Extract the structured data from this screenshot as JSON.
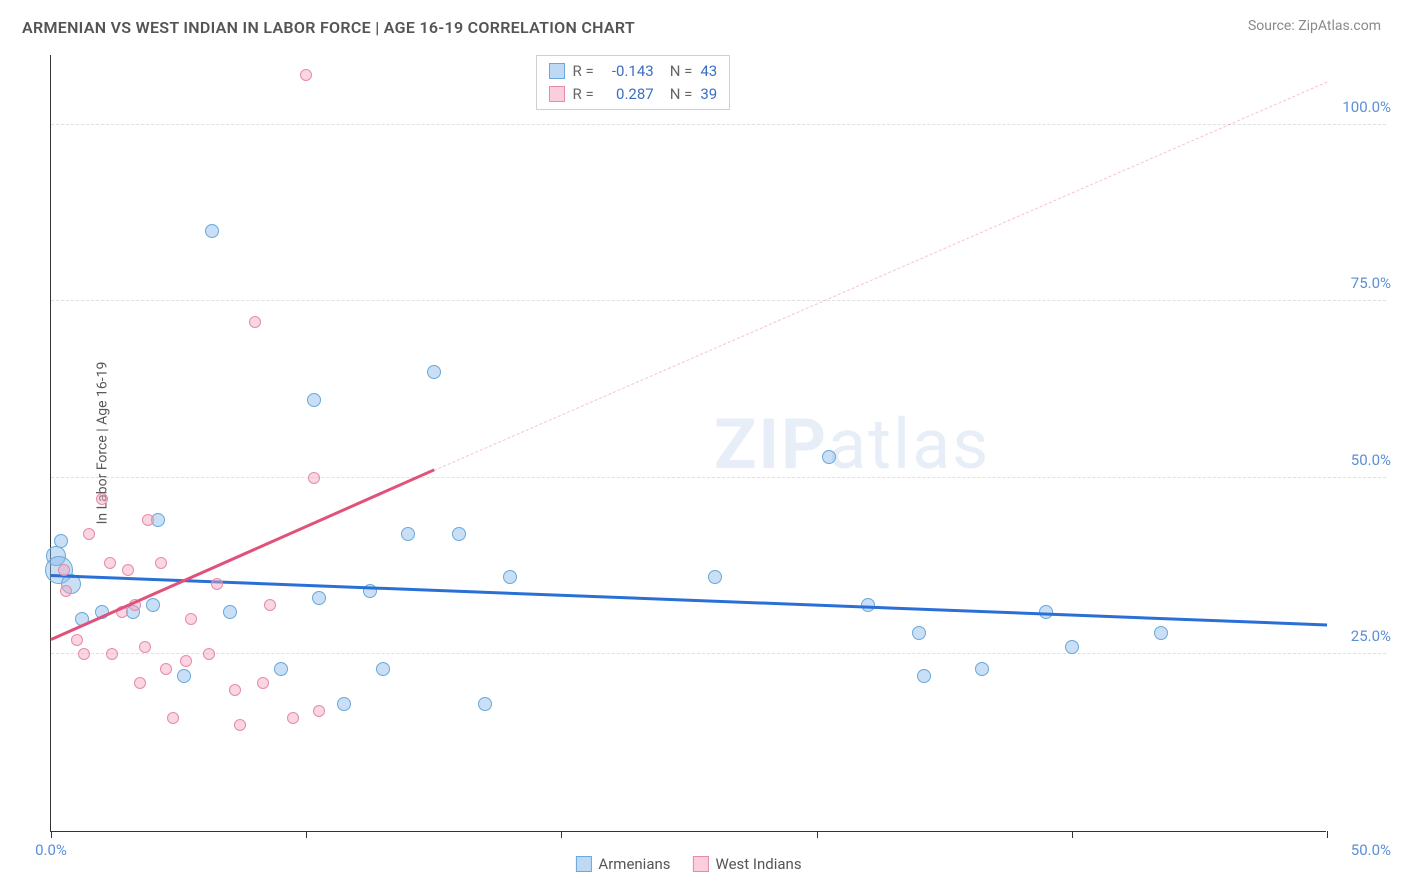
{
  "title": "ARMENIAN VS WEST INDIAN IN LABOR FORCE | AGE 16-19 CORRELATION CHART",
  "source": "Source: ZipAtlas.com",
  "y_axis_title": "In Labor Force | Age 16-19",
  "watermark_bold": "ZIP",
  "watermark_rest": "atlas",
  "chart": {
    "type": "scatter",
    "xlim": [
      0,
      50
    ],
    "ylim": [
      0,
      110
    ],
    "x_ticks": [
      0,
      10,
      20,
      30,
      40,
      50
    ],
    "x_tick_labels": [
      "0.0%",
      "",
      "",
      "",
      "",
      "50.0%"
    ],
    "y_ticks": [
      25,
      50,
      75,
      100
    ],
    "y_tick_labels": [
      "25.0%",
      "50.0%",
      "75.0%",
      "100.0%"
    ],
    "y_tick_color": "#5a8fd6",
    "x_tick_color": "#5a8fd6",
    "grid_color": "#e0e0e0",
    "background": "#ffffff",
    "series": [
      {
        "name": "Armenians",
        "color_fill": "rgba(135,185,235,0.45)",
        "color_stroke": "#6aa8da",
        "swatch_fill": "rgba(135,185,235,0.55)",
        "swatch_stroke": "#6aa8da",
        "trend_color": "#2a6fd6",
        "trend_dash_color": "rgba(42,111,214,0.35)",
        "R": "-0.143",
        "N": "43",
        "trend_start": {
          "x": 0,
          "y": 36
        },
        "trend_end": {
          "x": 50,
          "y": 29
        },
        "points": [
          {
            "x": 0.2,
            "y": 39,
            "r": 10
          },
          {
            "x": 0.3,
            "y": 37,
            "r": 14
          },
          {
            "x": 0.8,
            "y": 35,
            "r": 10
          },
          {
            "x": 0.4,
            "y": 41,
            "r": 7
          },
          {
            "x": 1.2,
            "y": 30,
            "r": 7
          },
          {
            "x": 2.0,
            "y": 31,
            "r": 7
          },
          {
            "x": 3.2,
            "y": 31,
            "r": 7
          },
          {
            "x": 4.2,
            "y": 44,
            "r": 7
          },
          {
            "x": 4.0,
            "y": 32,
            "r": 7
          },
          {
            "x": 5.2,
            "y": 22,
            "r": 7
          },
          {
            "x": 7.0,
            "y": 31,
            "r": 7
          },
          {
            "x": 6.3,
            "y": 85,
            "r": 7
          },
          {
            "x": 9.0,
            "y": 23,
            "r": 7
          },
          {
            "x": 10.3,
            "y": 61,
            "r": 7
          },
          {
            "x": 10.5,
            "y": 33,
            "r": 7
          },
          {
            "x": 11.5,
            "y": 18,
            "r": 7
          },
          {
            "x": 12.5,
            "y": 34,
            "r": 7
          },
          {
            "x": 13.0,
            "y": 23,
            "r": 7
          },
          {
            "x": 14.0,
            "y": 42,
            "r": 7
          },
          {
            "x": 15.0,
            "y": 65,
            "r": 7
          },
          {
            "x": 16.0,
            "y": 42,
            "r": 7
          },
          {
            "x": 17.0,
            "y": 18,
            "r": 7
          },
          {
            "x": 18.0,
            "y": 36,
            "r": 7
          },
          {
            "x": 26.0,
            "y": 36,
            "r": 7
          },
          {
            "x": 30.5,
            "y": 53,
            "r": 7
          },
          {
            "x": 32.0,
            "y": 32,
            "r": 7
          },
          {
            "x": 34.0,
            "y": 28,
            "r": 7
          },
          {
            "x": 34.2,
            "y": 22,
            "r": 7
          },
          {
            "x": 36.5,
            "y": 23,
            "r": 7
          },
          {
            "x": 39.0,
            "y": 31,
            "r": 7
          },
          {
            "x": 40.0,
            "y": 26,
            "r": 7
          },
          {
            "x": 43.5,
            "y": 28,
            "r": 7
          }
        ]
      },
      {
        "name": "West Indians",
        "color_fill": "rgba(245,165,190,0.45)",
        "color_stroke": "#e58ca8",
        "swatch_fill": "rgba(245,165,190,0.55)",
        "swatch_stroke": "#e58ca8",
        "trend_color": "#e0527a",
        "trend_dash_color": "rgba(224,82,122,0.35)",
        "R": "0.287",
        "N": "39",
        "trend_start": {
          "x": 0,
          "y": 27
        },
        "trend_solid_end": {
          "x": 15,
          "y": 51
        },
        "trend_end": {
          "x": 50,
          "y": 106
        },
        "points": [
          {
            "x": 0.5,
            "y": 37,
            "r": 6
          },
          {
            "x": 0.6,
            "y": 34,
            "r": 6
          },
          {
            "x": 1.5,
            "y": 42,
            "r": 6
          },
          {
            "x": 1.0,
            "y": 27,
            "r": 6
          },
          {
            "x": 1.3,
            "y": 25,
            "r": 6
          },
          {
            "x": 2.0,
            "y": 47,
            "r": 6
          },
          {
            "x": 2.3,
            "y": 38,
            "r": 6
          },
          {
            "x": 2.4,
            "y": 25,
            "r": 6
          },
          {
            "x": 2.8,
            "y": 31,
            "r": 6
          },
          {
            "x": 3.0,
            "y": 37,
            "r": 6
          },
          {
            "x": 3.3,
            "y": 32,
            "r": 6
          },
          {
            "x": 3.5,
            "y": 21,
            "r": 6
          },
          {
            "x": 3.7,
            "y": 26,
            "r": 6
          },
          {
            "x": 3.8,
            "y": 44,
            "r": 6
          },
          {
            "x": 4.3,
            "y": 38,
            "r": 6
          },
          {
            "x": 4.5,
            "y": 23,
            "r": 6
          },
          {
            "x": 4.8,
            "y": 16,
            "r": 6
          },
          {
            "x": 5.3,
            "y": 24,
            "r": 6
          },
          {
            "x": 5.5,
            "y": 30,
            "r": 6
          },
          {
            "x": 6.2,
            "y": 25,
            "r": 6
          },
          {
            "x": 6.5,
            "y": 35,
            "r": 6
          },
          {
            "x": 7.2,
            "y": 20,
            "r": 6
          },
          {
            "x": 7.4,
            "y": 15,
            "r": 6
          },
          {
            "x": 8.0,
            "y": 72,
            "r": 6
          },
          {
            "x": 8.3,
            "y": 21,
            "r": 6
          },
          {
            "x": 8.6,
            "y": 32,
            "r": 6
          },
          {
            "x": 9.5,
            "y": 16,
            "r": 6
          },
          {
            "x": 10.0,
            "y": 107,
            "r": 6
          },
          {
            "x": 10.3,
            "y": 50,
            "r": 6
          },
          {
            "x": 10.5,
            "y": 17,
            "r": 6
          }
        ]
      }
    ],
    "legend_bottom": [
      {
        "label": "Armenians",
        "series_idx": 0
      },
      {
        "label": "West Indians",
        "series_idx": 1
      }
    ]
  },
  "stats_label_R": "R =",
  "stats_label_N": "N =",
  "stats_value_color": "#3a6fc4"
}
